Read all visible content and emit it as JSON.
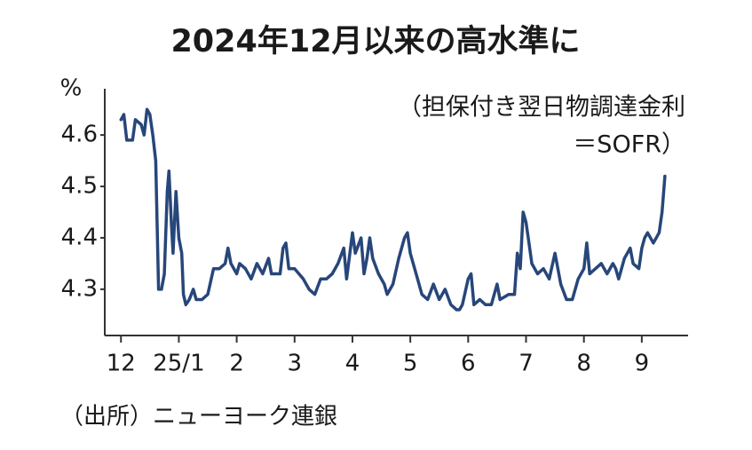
{
  "chart_data": {
    "type": "line",
    "title": "2024年12月以来の高水準に",
    "y_unit": "%",
    "annotation": [
      "（担保付き翌日物調達金利",
      "＝SOFR）"
    ],
    "source": "（出所）ニューヨーク連銀",
    "color": "#27467a",
    "xlim": [
      -0.28,
      9.8
    ],
    "ylim": [
      4.21,
      4.69
    ],
    "yticks": [
      4.3,
      4.4,
      4.5,
      4.6
    ],
    "xticks": [
      {
        "value": 0,
        "label": "12"
      },
      {
        "value": 1,
        "label": "25/1"
      },
      {
        "value": 2,
        "label": "2"
      },
      {
        "value": 3,
        "label": "3"
      },
      {
        "value": 4,
        "label": "4"
      },
      {
        "value": 5,
        "label": "5"
      },
      {
        "value": 6,
        "label": "6"
      },
      {
        "value": 7,
        "label": "7"
      },
      {
        "value": 8,
        "label": "8"
      },
      {
        "value": 9,
        "label": "9"
      }
    ],
    "x": [
      0.0,
      0.05,
      0.1,
      0.2,
      0.25,
      0.35,
      0.4,
      0.45,
      0.5,
      0.55,
      0.6,
      0.65,
      0.7,
      0.75,
      0.8,
      0.83,
      0.87,
      0.9,
      0.95,
      1.0,
      1.05,
      1.08,
      1.12,
      1.18,
      1.25,
      1.3,
      1.4,
      1.5,
      1.6,
      1.7,
      1.8,
      1.85,
      1.9,
      2.0,
      2.05,
      2.15,
      2.25,
      2.35,
      2.45,
      2.55,
      2.6,
      2.75,
      2.8,
      2.85,
      2.9,
      3.0,
      3.15,
      3.25,
      3.35,
      3.45,
      3.55,
      3.65,
      3.75,
      3.85,
      3.9,
      4.0,
      4.05,
      4.15,
      4.2,
      4.25,
      4.3,
      4.35,
      4.45,
      4.55,
      4.6,
      4.7,
      4.8,
      4.9,
      4.95,
      5.0,
      5.1,
      5.2,
      5.3,
      5.4,
      5.5,
      5.55,
      5.6,
      5.7,
      5.8,
      5.85,
      5.9,
      6.0,
      6.05,
      6.1,
      6.2,
      6.3,
      6.4,
      6.5,
      6.55,
      6.7,
      6.8,
      6.85,
      6.9,
      6.95,
      7.0,
      7.05,
      7.1,
      7.2,
      7.3,
      7.4,
      7.5,
      7.6,
      7.7,
      7.8,
      7.9,
      8.0,
      8.05,
      8.1,
      8.2,
      8.3,
      8.4,
      8.5,
      8.55,
      8.6,
      8.7,
      8.8,
      8.85,
      8.95,
      9.0,
      9.05,
      9.1,
      9.2,
      9.3,
      9.35,
      9.4
    ],
    "values": [
      4.63,
      4.64,
      4.59,
      4.59,
      4.63,
      4.62,
      4.6,
      4.65,
      4.64,
      4.6,
      4.55,
      4.3,
      4.3,
      4.33,
      4.49,
      4.53,
      4.43,
      4.37,
      4.49,
      4.4,
      4.37,
      4.29,
      4.27,
      4.28,
      4.3,
      4.28,
      4.28,
      4.29,
      4.34,
      4.34,
      4.35,
      4.38,
      4.35,
      4.33,
      4.35,
      4.34,
      4.32,
      4.35,
      4.33,
      4.36,
      4.33,
      4.33,
      4.38,
      4.39,
      4.34,
      4.34,
      4.32,
      4.3,
      4.29,
      4.32,
      4.32,
      4.33,
      4.35,
      4.38,
      4.32,
      4.41,
      4.37,
      4.4,
      4.33,
      4.36,
      4.4,
      4.36,
      4.33,
      4.31,
      4.29,
      4.31,
      4.36,
      4.4,
      4.41,
      4.37,
      4.33,
      4.29,
      4.28,
      4.31,
      4.28,
      4.29,
      4.3,
      4.27,
      4.26,
      4.26,
      4.27,
      4.32,
      4.33,
      4.27,
      4.28,
      4.27,
      4.27,
      4.31,
      4.28,
      4.29,
      4.29,
      4.37,
      4.34,
      4.45,
      4.43,
      4.39,
      4.35,
      4.33,
      4.34,
      4.32,
      4.37,
      4.31,
      4.28,
      4.28,
      4.32,
      4.34,
      4.39,
      4.33,
      4.34,
      4.35,
      4.33,
      4.35,
      4.34,
      4.32,
      4.36,
      4.38,
      4.35,
      4.34,
      4.38,
      4.4,
      4.41,
      4.39,
      4.41,
      4.45,
      4.52
    ]
  }
}
